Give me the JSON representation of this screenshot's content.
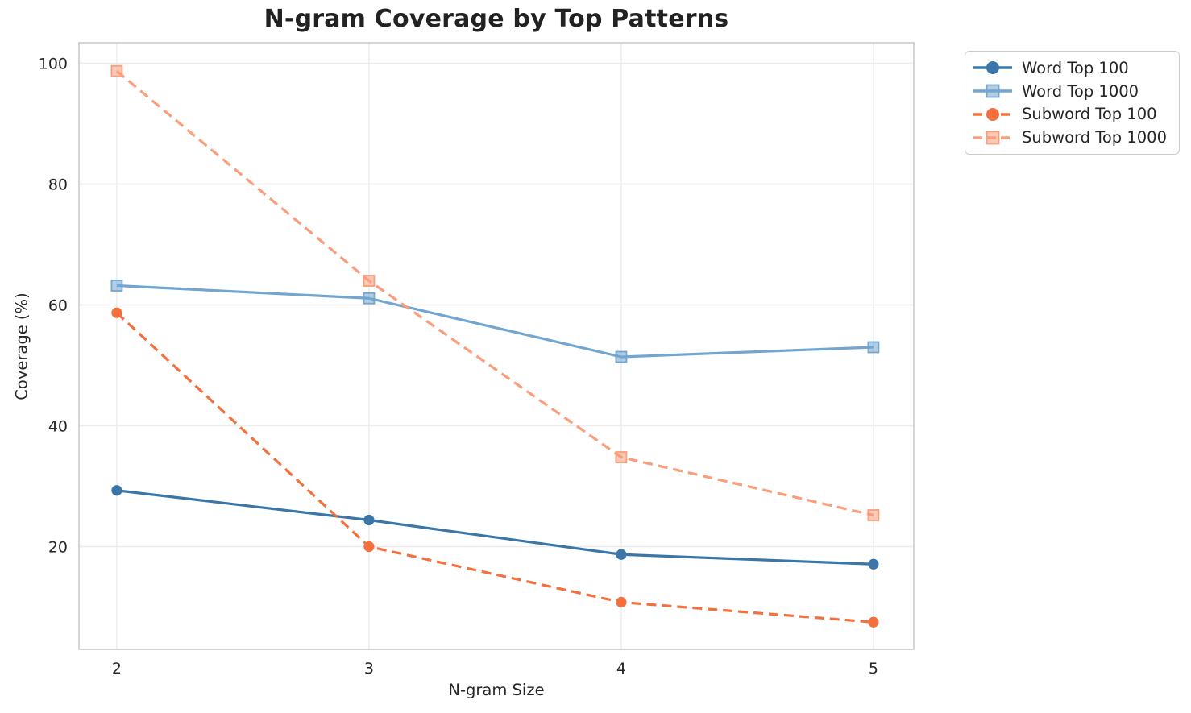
{
  "chart_data": {
    "type": "line",
    "title": "N-gram Coverage by Top Patterns",
    "xlabel": "N-gram Size",
    "ylabel": "Coverage (%)",
    "x": [
      2,
      3,
      4,
      5
    ],
    "xticks": [
      2,
      3,
      4,
      5
    ],
    "yticks": [
      20,
      40,
      60,
      80,
      100
    ],
    "xlim": [
      1.85,
      5.16
    ],
    "ylim": [
      3.0,
      103.4
    ],
    "grid": true,
    "legend_position": "outside-right",
    "series": [
      {
        "name": "Word Top 100",
        "values": [
          29.3,
          24.4,
          18.7,
          17.1
        ],
        "color": "#3a76a8",
        "linestyle": "solid",
        "marker": "circle"
      },
      {
        "name": "Word Top 1000",
        "values": [
          63.2,
          61.1,
          51.4,
          53.0
        ],
        "color": "#72a5cf",
        "linestyle": "solid",
        "marker": "square"
      },
      {
        "name": "Subword Top 100",
        "values": [
          58.7,
          20.0,
          10.8,
          7.5
        ],
        "color": "#f3703e",
        "linestyle": "dashed",
        "marker": "circle"
      },
      {
        "name": "Subword Top 1000",
        "values": [
          98.7,
          64.0,
          34.8,
          25.2
        ],
        "color": "#fa9d7b",
        "linestyle": "dashed",
        "marker": "square"
      }
    ],
    "style": {
      "grid_color": "#ececec",
      "spine_color": "#cccccc",
      "text_color": "#262626",
      "background": "#ffffff"
    }
  }
}
